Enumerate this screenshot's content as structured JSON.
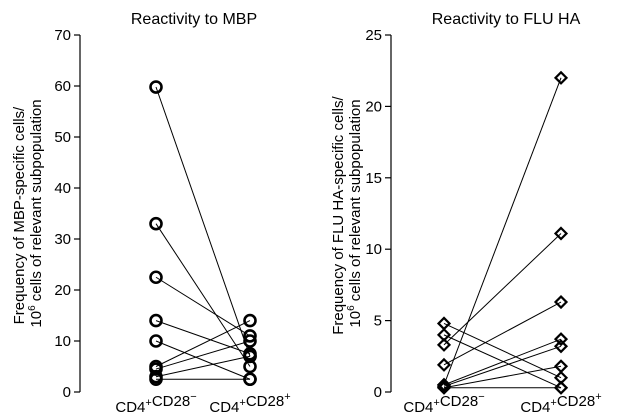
{
  "chart_data": [
    {
      "type": "line",
      "title": "Reactivity to MBP",
      "ylabel_lines": [
        "Frequency of MBP-specific cells/",
        "10^6 cells of relevant subpopulation"
      ],
      "categories": [
        "CD4+CD28−",
        "CD4+CD28+"
      ],
      "ylim": [
        0,
        70
      ],
      "yticks": [
        0,
        10,
        20,
        30,
        40,
        50,
        60,
        70
      ],
      "marker": "circle",
      "pairs": [
        [
          59.8,
          7.0
        ],
        [
          33.0,
          5.0
        ],
        [
          22.5,
          11.0
        ],
        [
          14.0,
          7.5
        ],
        [
          10.0,
          2.5
        ],
        [
          5.0,
          14.0
        ],
        [
          4.5,
          10.0
        ],
        [
          3.0,
          7.0
        ],
        [
          2.5,
          2.5
        ]
      ]
    },
    {
      "type": "line",
      "title": "Reactivity to FLU HA",
      "ylabel_lines": [
        "Frequency of FLU HA-specific cells/",
        "10^6 cells of relevant subpopulation"
      ],
      "categories": [
        "CD4+CD28−",
        "CD4+CD28+"
      ],
      "ylim": [
        0,
        25
      ],
      "yticks": [
        0,
        5,
        10,
        15,
        20,
        25
      ],
      "marker": "diamond",
      "pairs": [
        [
          4.8,
          1.0
        ],
        [
          4.0,
          0.3
        ],
        [
          3.3,
          11.1
        ],
        [
          1.9,
          6.3
        ],
        [
          0.5,
          22.0
        ],
        [
          0.5,
          3.7
        ],
        [
          0.4,
          3.2
        ],
        [
          0.3,
          1.8
        ],
        [
          0.3,
          0.3
        ]
      ]
    }
  ]
}
